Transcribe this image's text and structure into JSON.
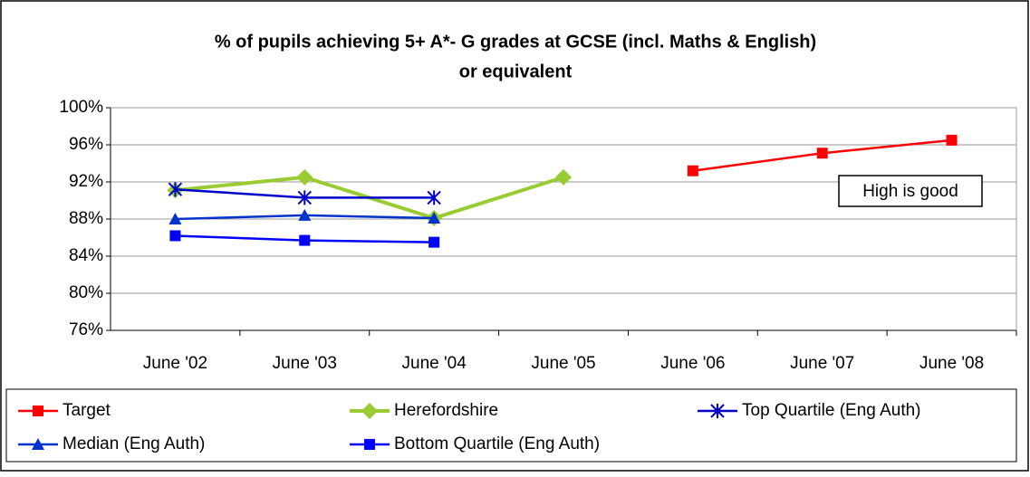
{
  "chart_data": {
    "type": "line",
    "title": [
      "% of pupils achieving 5+ A*- G grades at GCSE (incl. Maths & English)",
      "or equivalent"
    ],
    "categories": [
      "June '02",
      "June '03",
      "June '04",
      "June '05",
      "June '06",
      "June '07",
      "June '08"
    ],
    "series": [
      {
        "name": "Target",
        "color": "#ff0000",
        "marker": "square",
        "values": [
          null,
          null,
          null,
          null,
          93.2,
          95.1,
          96.5
        ]
      },
      {
        "name": "Herefordshire",
        "color": "#99cc33",
        "marker": "diamond",
        "values": [
          91.1,
          92.5,
          88.1,
          92.5,
          null,
          null,
          null
        ]
      },
      {
        "name": "Top Quartile (Eng Auth)",
        "color": "#0000cc",
        "marker": "star",
        "values": [
          91.2,
          90.3,
          90.3,
          null,
          null,
          null,
          null
        ]
      },
      {
        "name": "Median (Eng Auth)",
        "color": "#0033cc",
        "marker": "triangle",
        "values": [
          88.0,
          88.4,
          88.1,
          null,
          null,
          null,
          null
        ]
      },
      {
        "name": "Bottom Quartile (Eng Auth)",
        "color": "#0000ff",
        "marker": "square",
        "values": [
          86.2,
          85.7,
          85.5,
          null,
          null,
          null,
          null
        ]
      }
    ],
    "ylim": [
      76,
      100
    ],
    "yticks": [
      {
        "value": 76,
        "label": "76%"
      },
      {
        "value": 80,
        "label": "80%"
      },
      {
        "value": 84,
        "label": "84%"
      },
      {
        "value": 88,
        "label": "88%"
      },
      {
        "value": 92,
        "label": "92%"
      },
      {
        "value": 96,
        "label": "96%"
      },
      {
        "value": 100,
        "label": "100%"
      }
    ],
    "grid": true,
    "annotations": [
      "High is good"
    ],
    "legend": "bottom"
  }
}
